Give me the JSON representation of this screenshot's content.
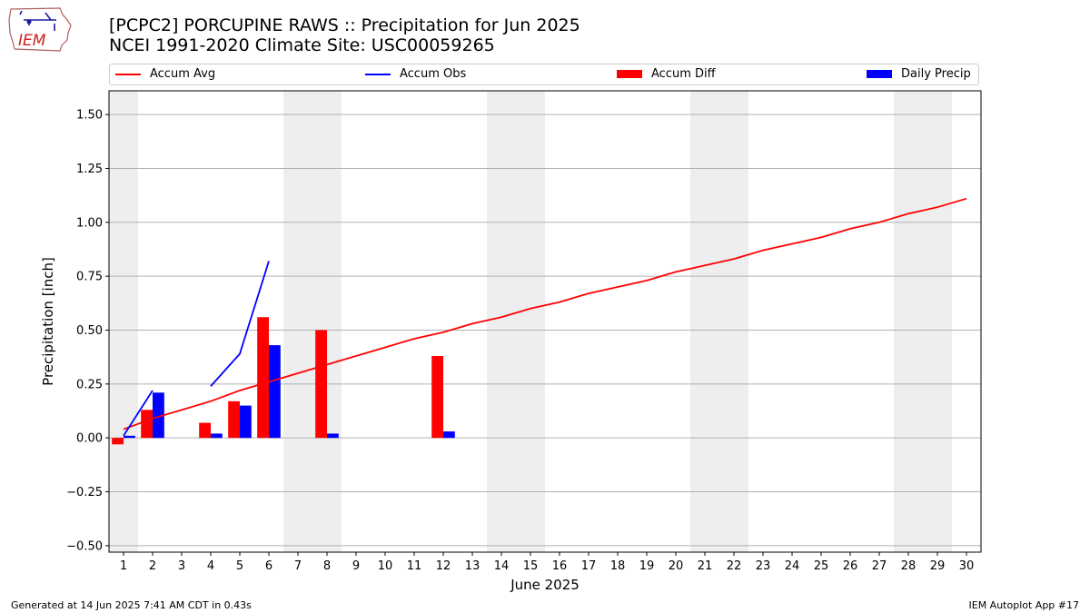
{
  "header": {
    "title_line1": "[PCPC2] PORCUPINE RAWS :: Precipitation for Jun 2025",
    "title_line2": "NCEI 1991-2020 Climate Site: USC00059265",
    "logo_text": "IEM"
  },
  "footer": {
    "left": "Generated at 14 Jun 2025 7:41 AM CDT in 0.43s",
    "right": "IEM Autoplot App #17"
  },
  "chart_data": {
    "type": "bar",
    "xlabel": "June 2025",
    "ylabel": "Precipitation [inch]",
    "xlim": [
      0.5,
      30.5
    ],
    "ylim": [
      -0.53,
      1.61
    ],
    "x_ticks": [
      1,
      2,
      3,
      4,
      5,
      6,
      7,
      8,
      9,
      10,
      11,
      12,
      13,
      14,
      15,
      16,
      17,
      18,
      19,
      20,
      21,
      22,
      23,
      24,
      25,
      26,
      27,
      28,
      29,
      30
    ],
    "y_ticks": [
      -0.5,
      -0.25,
      0.0,
      0.25,
      0.5,
      0.75,
      1.0,
      1.25,
      1.5
    ],
    "y_tick_labels": [
      "−0.50",
      "−0.25",
      "0.00",
      "0.25",
      "0.50",
      "0.75",
      "1.00",
      "1.25",
      "1.50"
    ],
    "grid": "horizontal",
    "legend_position": "top",
    "weekend_shading": [
      [
        0.5,
        1.5
      ],
      [
        6.5,
        8.5
      ],
      [
        13.5,
        15.5
      ],
      [
        20.5,
        22.5
      ],
      [
        27.5,
        29.5
      ]
    ],
    "colors": {
      "accum_avg": "#ff0000",
      "accum_obs": "#0000ff",
      "accum_diff": "#ff0000",
      "daily_precip": "#0000ff",
      "shading": "#eeeeee",
      "grid": "#b0b0b0"
    },
    "series": [
      {
        "name": "Accum Avg",
        "kind": "line",
        "x": [
          1,
          2,
          3,
          4,
          5,
          6,
          7,
          8,
          9,
          10,
          11,
          12,
          13,
          14,
          15,
          16,
          17,
          18,
          19,
          20,
          21,
          22,
          23,
          24,
          25,
          26,
          27,
          28,
          29,
          30
        ],
        "values": [
          0.04,
          0.09,
          0.13,
          0.17,
          0.22,
          0.26,
          0.3,
          0.34,
          0.38,
          0.42,
          0.46,
          0.49,
          0.53,
          0.56,
          0.6,
          0.63,
          0.67,
          0.7,
          0.73,
          0.77,
          0.8,
          0.83,
          0.87,
          0.9,
          0.93,
          0.97,
          1.0,
          1.04,
          1.07,
          1.11
        ]
      },
      {
        "name": "Accum Obs",
        "kind": "line",
        "segments": [
          {
            "x": [
              1,
              2
            ],
            "values": [
              0.01,
              0.22
            ]
          },
          {
            "x": [
              4,
              5,
              6
            ],
            "values": [
              0.24,
              0.39,
              0.82
            ]
          }
        ]
      },
      {
        "name": "Accum Diff",
        "kind": "bar",
        "x": [
          1,
          2,
          4,
          5,
          6,
          8,
          12
        ],
        "values": [
          -0.03,
          0.13,
          0.07,
          0.17,
          0.56,
          0.5,
          0.38
        ]
      },
      {
        "name": "Daily Precip",
        "kind": "bar",
        "x": [
          1,
          2,
          4,
          5,
          6,
          8,
          12
        ],
        "values": [
          0.01,
          0.21,
          0.02,
          0.15,
          0.43,
          0.02,
          0.03
        ]
      }
    ]
  }
}
